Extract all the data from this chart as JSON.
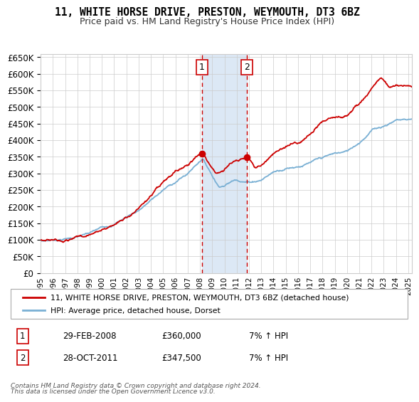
{
  "title": "11, WHITE HORSE DRIVE, PRESTON, WEYMOUTH, DT3 6BZ",
  "subtitle": "Price paid vs. HM Land Registry's House Price Index (HPI)",
  "legend_line1": "11, WHITE HORSE DRIVE, PRESTON, WEYMOUTH, DT3 6BZ (detached house)",
  "legend_line2": "HPI: Average price, detached house, Dorset",
  "marker1_date": "29-FEB-2008",
  "marker1_price": 360000,
  "marker1_hpi": "7% ↑ HPI",
  "marker2_date": "28-OCT-2011",
  "marker2_price": 347500,
  "marker2_hpi": "7% ↑ HPI",
  "footer1": "Contains HM Land Registry data © Crown copyright and database right 2024.",
  "footer2": "This data is licensed under the Open Government Licence v3.0.",
  "red_color": "#cc0000",
  "blue_color": "#7ab0d4",
  "shading_color": "#dce8f5",
  "grid_color": "#cccccc",
  "ylim": [
    0,
    660000
  ],
  "xlim_start": 1995.0,
  "xlim_end": 2025.3,
  "marker1_x": 2008.17,
  "marker2_x": 2011.83
}
